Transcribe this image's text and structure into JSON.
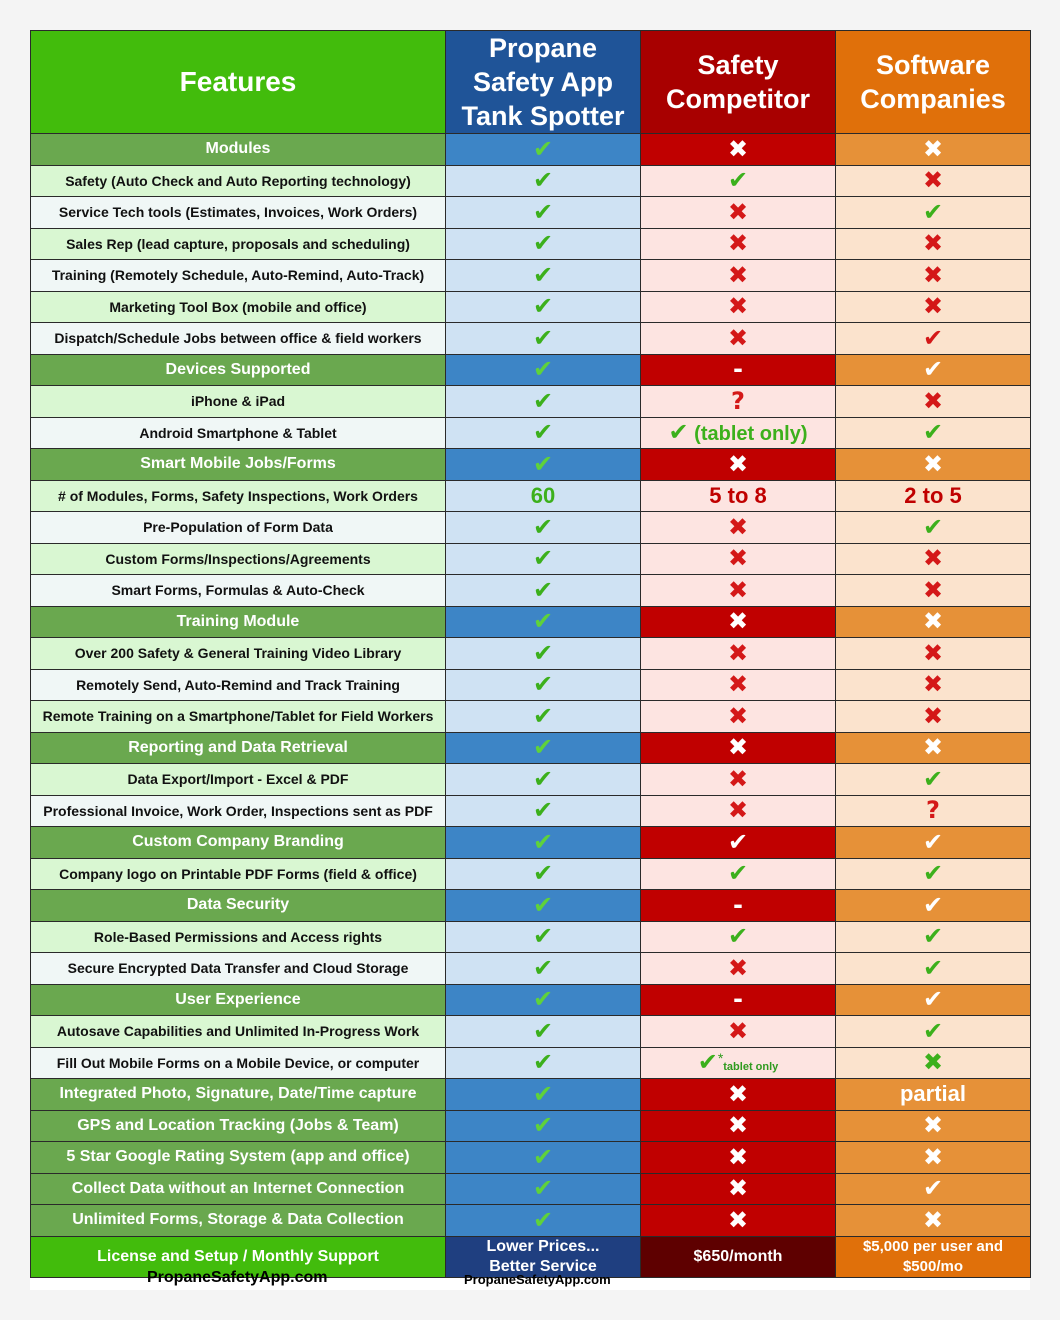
{
  "header": {
    "features": "Features",
    "col1": [
      "Propane",
      "Safety App",
      "Tank Spotter"
    ],
    "col2": [
      "Safety",
      "Competitor"
    ],
    "col3": [
      "Software",
      "Companies"
    ]
  },
  "colors": {
    "check": "#3cb01c",
    "cross": "#d41818",
    "features_green": "#42bc0c",
    "app_blue": "#1f5498",
    "competitor_red": "#a80000",
    "software_orange": "#e0700a"
  },
  "marks": {
    "check": "✔",
    "cross": "✖",
    "dash": "-",
    "question": "?"
  },
  "rows": [
    {
      "type": "section",
      "label": "Modules",
      "cells": [
        "check",
        "cross",
        "cross"
      ]
    },
    {
      "type": "item",
      "label": "Safety (Auto Check and Auto Reporting technology)",
      "cells": [
        "check",
        "check",
        "cross"
      ]
    },
    {
      "type": "item",
      "label": "Service Tech tools (Estimates, Invoices, Work Orders)",
      "cells": [
        "check",
        "cross",
        "check"
      ]
    },
    {
      "type": "item",
      "label": "Sales Rep (lead capture, proposals and scheduling)",
      "cells": [
        "check",
        "cross",
        "cross"
      ]
    },
    {
      "type": "item",
      "label": "Training (Remotely Schedule, Auto-Remind, Auto-Track)",
      "cells": [
        "check",
        "cross",
        "cross"
      ]
    },
    {
      "type": "item",
      "label": "Marketing Tool Box (mobile and office)",
      "cells": [
        "check",
        "cross",
        "cross"
      ]
    },
    {
      "type": "item",
      "label": "Dispatch/Schedule Jobs between office & field workers",
      "cells": [
        "check",
        "cross",
        "check-red"
      ]
    },
    {
      "type": "section",
      "label": "Devices Supported",
      "cells": [
        "check",
        "dash",
        "check-white"
      ]
    },
    {
      "type": "item",
      "label": "iPhone & iPad",
      "cells": [
        "check",
        "question",
        "cross"
      ]
    },
    {
      "type": "item",
      "label": "Android Smartphone & Tablet",
      "cells": [
        "check",
        "tablet-only",
        "check"
      ]
    },
    {
      "type": "section",
      "label": "Smart Mobile Jobs/Forms",
      "cells": [
        "check",
        "cross",
        "cross"
      ]
    },
    {
      "type": "item",
      "label": "# of Modules, Forms, Safety Inspections, Work Orders",
      "cells": [
        "n:60",
        "n:5 to 8",
        "n:2 to 5"
      ]
    },
    {
      "type": "item",
      "label": "Pre-Population of Form Data",
      "cells": [
        "check",
        "cross",
        "check"
      ]
    },
    {
      "type": "item",
      "label": "Custom Forms/Inspections/Agreements",
      "cells": [
        "check",
        "cross",
        "cross"
      ]
    },
    {
      "type": "item",
      "label": "Smart Forms, Formulas & Auto-Check",
      "cells": [
        "check",
        "cross",
        "cross"
      ]
    },
    {
      "type": "section",
      "label": "Training Module",
      "cells": [
        "check",
        "cross",
        "cross"
      ]
    },
    {
      "type": "item",
      "label": "Over 200 Safety & General Training Video Library",
      "cells": [
        "check",
        "cross",
        "cross"
      ]
    },
    {
      "type": "item",
      "label": "Remotely Send, Auto-Remind and Track Training",
      "cells": [
        "check",
        "cross",
        "cross"
      ]
    },
    {
      "type": "item",
      "label": "Remote Training on a Smartphone/Tablet for Field Workers",
      "cells": [
        "check",
        "cross",
        "cross"
      ]
    },
    {
      "type": "section",
      "label": "Reporting and Data Retrieval",
      "cells": [
        "check",
        "cross",
        "cross"
      ]
    },
    {
      "type": "item",
      "label": "Data Export/Import - Excel & PDF",
      "cells": [
        "check",
        "cross",
        "check"
      ]
    },
    {
      "type": "item",
      "label": "Professional Invoice, Work Order, Inspections sent as PDF",
      "cells": [
        "check",
        "cross",
        "question"
      ]
    },
    {
      "type": "section",
      "label": "Custom Company Branding",
      "cells": [
        "check",
        "check-white",
        "check-white"
      ]
    },
    {
      "type": "item",
      "label": "Company logo on Printable PDF Forms (field & office)",
      "cells": [
        "check",
        "check",
        "check"
      ]
    },
    {
      "type": "section",
      "label": "Data Security",
      "cells": [
        "check",
        "dash",
        "check-white"
      ]
    },
    {
      "type": "item",
      "label": "Role-Based Permissions and Access rights",
      "cells": [
        "check",
        "check",
        "check"
      ]
    },
    {
      "type": "item",
      "label": "Secure Encrypted Data Transfer and Cloud Storage",
      "cells": [
        "check",
        "cross",
        "check"
      ]
    },
    {
      "type": "section",
      "label": "User Experience",
      "cells": [
        "check",
        "dash",
        "check-white"
      ]
    },
    {
      "type": "item",
      "label": "Autosave Capabilities and Unlimited In-Progress Work",
      "cells": [
        "check",
        "cross",
        "check"
      ]
    },
    {
      "type": "item",
      "label": "Fill Out Mobile Forms on a Mobile Device, or computer",
      "cells": [
        "check",
        "check-star",
        "cross-green"
      ]
    },
    {
      "type": "section",
      "label": "Integrated Photo, Signature, Date/Time capture",
      "cells": [
        "check",
        "cross",
        "partial"
      ]
    },
    {
      "type": "section",
      "label": "GPS and Location Tracking (Jobs & Team)",
      "cells": [
        "check",
        "cross",
        "cross"
      ]
    },
    {
      "type": "section",
      "label": "5 Star Google Rating System (app and office)",
      "cells": [
        "check",
        "cross",
        "cross"
      ]
    },
    {
      "type": "section",
      "label": "Collect Data without an Internet Connection",
      "cells": [
        "check",
        "cross",
        "check-white"
      ]
    },
    {
      "type": "section",
      "label": "Unlimited Forms, Storage & Data Collection",
      "cells": [
        "check",
        "cross",
        "cross"
      ]
    }
  ],
  "labels": {
    "tablet_only": "(tablet only)",
    "tablet_only_small": "tablet only",
    "star": "*",
    "partial": "partial"
  },
  "license": {
    "label": "License and Setup / Monthly Support",
    "col1": [
      "Lower Prices...",
      "Better Service"
    ],
    "col2": "$650/month",
    "col3": [
      "$5,000 per user and",
      "$500/mo"
    ]
  },
  "footer": {
    "left": "PropaneSafetyApp.com",
    "center": "PropaneSafetyApp.com"
  }
}
